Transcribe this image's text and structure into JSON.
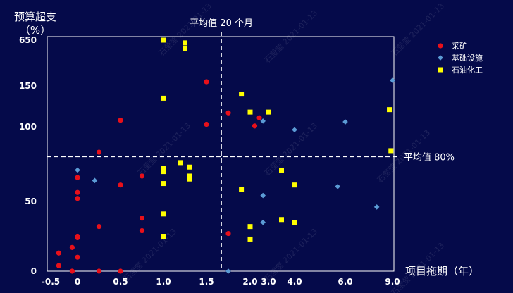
{
  "chart_data": {
    "type": "scatter",
    "title": "",
    "ylabel_line1": "预算超支",
    "ylabel_line2": "（%）",
    "xlabel": "项目拖期（年）",
    "x_ticks": [
      "-0.5",
      "0",
      "0.5",
      "1.0",
      "1.5",
      "2.0",
      "3.0",
      "4.0",
      "6.0",
      "9.0"
    ],
    "y_ticks": [
      "0",
      "50",
      "100",
      "150",
      "650"
    ],
    "x_scale": "piecewise",
    "y_scale": "piecewise",
    "avg_x_label": "平均值 20 个月",
    "avg_x_value": 1.67,
    "avg_y_label": "平均值 80%",
    "avg_y_value": 80,
    "grid": false,
    "legend_position": "top-right",
    "watermark": "石莹莹 2021-01-13",
    "series": [
      {
        "name": "采矿",
        "marker": "circle",
        "color": "#e8101a",
        "points": [
          [
            -0.35,
            13
          ],
          [
            -0.35,
            4
          ],
          [
            -0.1,
            17
          ],
          [
            -0.1,
            0
          ],
          [
            0,
            25
          ],
          [
            0,
            24
          ],
          [
            0,
            10
          ],
          [
            0,
            52
          ],
          [
            0,
            56
          ],
          [
            0,
            66
          ],
          [
            0.25,
            83
          ],
          [
            0.25,
            32
          ],
          [
            0.25,
            0
          ],
          [
            0.5,
            61
          ],
          [
            0.5,
            108
          ],
          [
            0.5,
            0
          ],
          [
            0.75,
            67
          ],
          [
            0.75,
            38
          ],
          [
            0.75,
            29
          ],
          [
            1.5,
            196
          ],
          [
            1.5,
            103
          ],
          [
            1.75,
            117
          ],
          [
            1.75,
            27
          ],
          [
            2.25,
            101
          ],
          [
            2.5,
            111
          ]
        ]
      },
      {
        "name": "基础设施",
        "marker": "diamond",
        "color": "#5b9bd5",
        "points": [
          [
            0,
            71
          ],
          [
            0.2,
            64
          ],
          [
            1.75,
            0
          ],
          [
            2.7,
            54
          ],
          [
            2.7,
            35
          ],
          [
            2.7,
            107
          ],
          [
            4.0,
            98
          ],
          [
            5.7,
            60
          ],
          [
            6.0,
            106
          ],
          [
            8.0,
            46
          ],
          [
            9.0,
            211
          ]
        ]
      },
      {
        "name": "石油化工",
        "marker": "square",
        "color": "#ffff00",
        "points": [
          [
            1.0,
            650
          ],
          [
            1.25,
            620
          ],
          [
            1.25,
            560
          ],
          [
            1.0,
            135
          ],
          [
            1.0,
            72
          ],
          [
            1.0,
            70
          ],
          [
            1.0,
            62
          ],
          [
            1.0,
            41
          ],
          [
            1.0,
            25
          ],
          [
            1.2,
            76
          ],
          [
            1.3,
            73
          ],
          [
            1.3,
            67
          ],
          [
            1.3,
            65
          ],
          [
            1.9,
            140
          ],
          [
            2.0,
            118
          ],
          [
            2.0,
            32
          ],
          [
            2.0,
            23
          ],
          [
            1.9,
            58
          ],
          [
            3.0,
            118
          ],
          [
            3.5,
            71
          ],
          [
            3.5,
            37
          ],
          [
            4.0,
            61
          ],
          [
            4.0,
            35
          ],
          [
            8.9,
            84
          ],
          [
            8.8,
            121
          ]
        ]
      }
    ]
  }
}
